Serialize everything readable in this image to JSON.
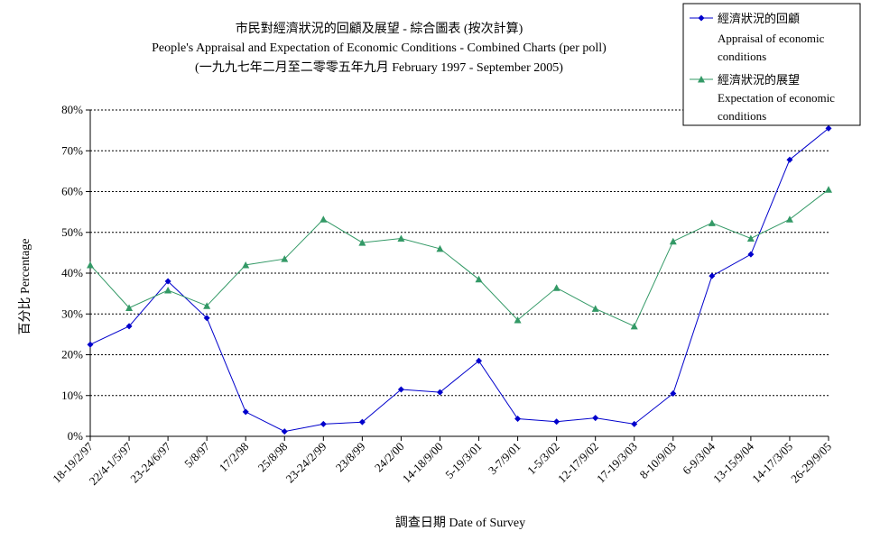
{
  "chart_data": {
    "type": "line",
    "title": "市民對經濟狀況的回顧及展望 - 綜合圖表 (按次計算)",
    "subtitle": "People's Appraisal and Expectation of Economic Conditions - Combined Charts  (per poll)",
    "subtitle2": "(一九九七年二月至二零零五年九月 February 1997 - September 2005)",
    "xlabel": "調查日期 Date of Survey",
    "ylabel": "百分比 Percentage",
    "ylim": [
      0,
      80
    ],
    "yticks": [
      "0%",
      "10%",
      "20%",
      "30%",
      "40%",
      "50%",
      "60%",
      "70%",
      "80%"
    ],
    "grid": true,
    "legend_position": "top-right",
    "categories": [
      "18-19/2/97",
      "22/4-1/5/97",
      "23-24/6/97",
      "5/8/97",
      "17/2/98",
      "25/8/98",
      "23-24/2/99",
      "23/8/99",
      "24/2/00",
      "14-18/9/00",
      "5-19/3/01",
      "3-7/9/01",
      "1-5/3/02",
      "12-17/9/02",
      "17-19/3/03",
      "8-10/9/03",
      "6-9/3/04",
      "13-15/9/04",
      "14-17/3/05",
      "26-29/9/05"
    ],
    "series": [
      {
        "name_zh": "經濟狀況的回顧",
        "name_en_line1": "Appraisal of economic",
        "name_en_line2": "conditions",
        "color": "#0000CC",
        "marker": "diamond",
        "values": [
          22.5,
          27,
          38,
          29,
          6,
          1.2,
          3,
          3.5,
          11.5,
          10.8,
          18.5,
          4.3,
          3.6,
          4.5,
          3,
          10.5,
          39.3,
          44.6,
          67.8,
          75.5
        ]
      },
      {
        "name_zh": "經濟狀況的展望",
        "name_en_line1": "Expectation of economic",
        "name_en_line2": "conditions",
        "color": "#339966",
        "marker": "triangle",
        "values": [
          42,
          31.5,
          35.8,
          32,
          42,
          43.5,
          53.2,
          47.5,
          48.5,
          46,
          38.5,
          28.5,
          36.4,
          31.3,
          27,
          47.8,
          52.3,
          48.5,
          53.2,
          60.5
        ]
      }
    ]
  }
}
